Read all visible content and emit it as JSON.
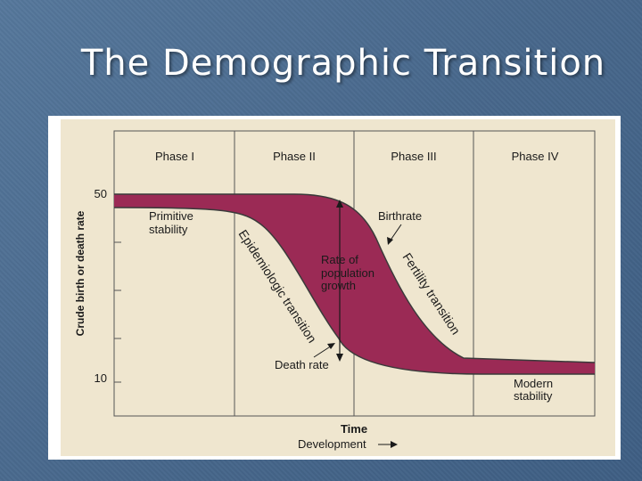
{
  "slide": {
    "title": "The Demographic Transition"
  },
  "diagram": {
    "phases": [
      "Phase I",
      "Phase II",
      "Phase III",
      "Phase IV"
    ],
    "y_axis_label": "Crude birth or death rate",
    "y_ticks": [
      "50",
      "10"
    ],
    "x_axis_label": "Time",
    "x_axis_sublabel": "Development",
    "labels": {
      "primitive_line1": "Primitive",
      "primitive_line2": "stability",
      "birthrate": "Birthrate",
      "death_rate": "Death rate",
      "growth_line1": "Rate of",
      "growth_line2": "population",
      "growth_line3": "growth",
      "epidemiologic": "Epidemiologic transition",
      "fertility": "Fertility transition",
      "modern_line1": "Modern",
      "modern_line2": "stability"
    },
    "colors": {
      "background": "#efe6cf",
      "gap_fill": "#9b2a55",
      "curve": "#3a3a3a"
    }
  }
}
